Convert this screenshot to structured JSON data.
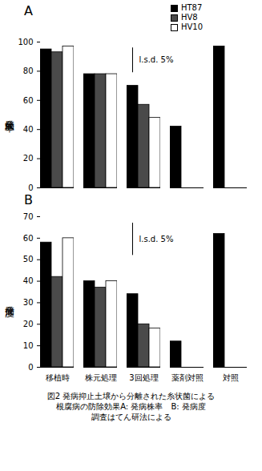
{
  "chart_data": [
    {
      "type": "bar",
      "title": "A",
      "y_label": "発病株率",
      "categories": [
        "移植時",
        "株元処理",
        "3回処理",
        "薬剤対照",
        "対照"
      ],
      "series": [
        {
          "name": "HT87",
          "color": "#000000",
          "values": [
            95,
            78,
            70,
            42,
            97
          ]
        },
        {
          "name": "HV8",
          "color": "#4a4a4a",
          "values": [
            93,
            78,
            57,
            null,
            null
          ]
        },
        {
          "name": "HV10",
          "color": "#ffffff",
          "values": [
            97,
            78,
            48,
            null,
            null
          ]
        }
      ],
      "ylim": [
        0,
        100
      ],
      "yticks": [
        0,
        20,
        40,
        60,
        80,
        100
      ],
      "lsd": {
        "label": "l.s.d. 5%",
        "low": 79,
        "high": 96
      },
      "legend": "top-right",
      "tick_labels": "y"
    },
    {
      "type": "bar",
      "title": "B",
      "y_label": "発病度",
      "categories": [
        "移植時",
        "株元処理",
        "3回処理",
        "薬剤対照",
        "対照"
      ],
      "series": [
        {
          "name": "HT87",
          "color": "#000000",
          "values": [
            58,
            40,
            34,
            12,
            62
          ]
        },
        {
          "name": "HV8",
          "color": "#4a4a4a",
          "values": [
            42,
            37,
            20,
            null,
            null
          ]
        },
        {
          "name": "HV10",
          "color": "#ffffff",
          "values": [
            60,
            40,
            18,
            null,
            null
          ]
        }
      ],
      "ylim": [
        0,
        70
      ],
      "yticks": [
        0,
        10,
        20,
        30,
        40,
        50,
        60,
        70
      ],
      "lsd": {
        "label": "l.s.d. 5%",
        "low": 52,
        "high": 67
      }
    }
  ],
  "caption": [
    "図2 発病抑止土壌から分離された糸状菌による",
    "根腐病の防除効果A: 発病株率　B: 発病度",
    "調査はてん研法による"
  ]
}
